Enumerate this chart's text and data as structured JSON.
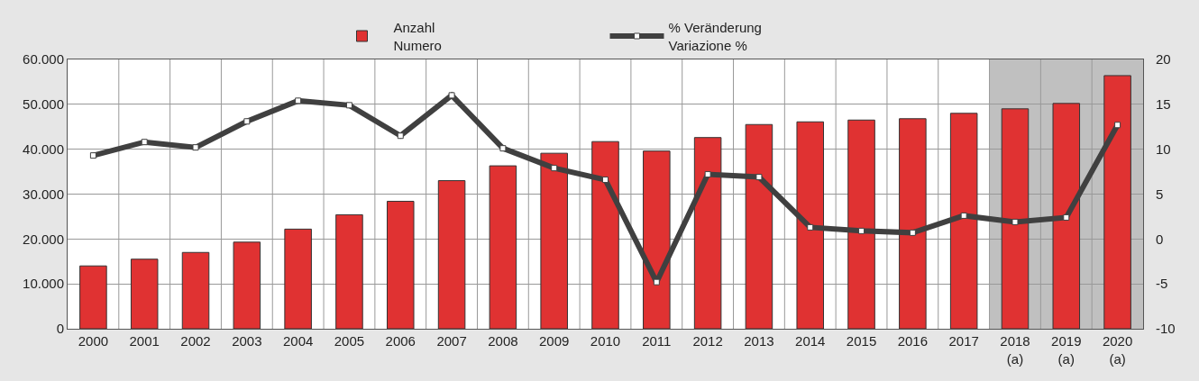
{
  "chart_data": {
    "type": "bar",
    "categories": [
      "2000",
      "2001",
      "2002",
      "2003",
      "2004",
      "2005",
      "2006",
      "2007",
      "2008",
      "2009",
      "2010",
      "2011",
      "2012",
      "2013",
      "2014",
      "2015",
      "2016",
      "2017",
      "2018\n(a)",
      "2019\n(a)",
      "2020\n(a)"
    ],
    "series": [
      {
        "name": "Anzahl\nNumero",
        "color": "#e03232",
        "values": [
          14000,
          15500,
          17000,
          19300,
          22200,
          25400,
          28400,
          33000,
          36300,
          39100,
          41700,
          39600,
          42600,
          45500,
          46100,
          46500,
          46800,
          48000,
          49000,
          50200,
          56400
        ]
      },
      {
        "name": "% Veränderung\nVariazione %",
        "type": "line",
        "axis": "y2",
        "color": "#404040",
        "marker": "square",
        "line_style": "solid",
        "values": [
          9.3,
          10.8,
          10.2,
          13.1,
          15.4,
          14.9,
          11.5,
          16.0,
          10.1,
          7.9,
          6.6,
          -4.8,
          7.2,
          6.9,
          1.3,
          0.9,
          0.7,
          2.6,
          1.9,
          2.4,
          12.7
        ]
      }
    ],
    "ylim": [
      0,
      60000
    ],
    "yticks": [
      {
        "value": 0,
        "label": "0"
      },
      {
        "value": 10000,
        "label": "10.000"
      },
      {
        "value": 20000,
        "label": "20.000"
      },
      {
        "value": 30000,
        "label": "30.000"
      },
      {
        "value": 40000,
        "label": "40.000"
      },
      {
        "value": 50000,
        "label": "50.000"
      },
      {
        "value": 60000,
        "label": "60.000"
      }
    ],
    "y2lim": [
      -10,
      20
    ],
    "y2ticks": [
      -10,
      -5,
      0,
      5,
      10,
      15,
      20
    ],
    "bands": [
      {
        "axis": "x",
        "from": "2018\n(a)",
        "to": "2020\n(a)",
        "color": "#c0c0c0"
      }
    ],
    "grid": true,
    "legend": "top"
  }
}
